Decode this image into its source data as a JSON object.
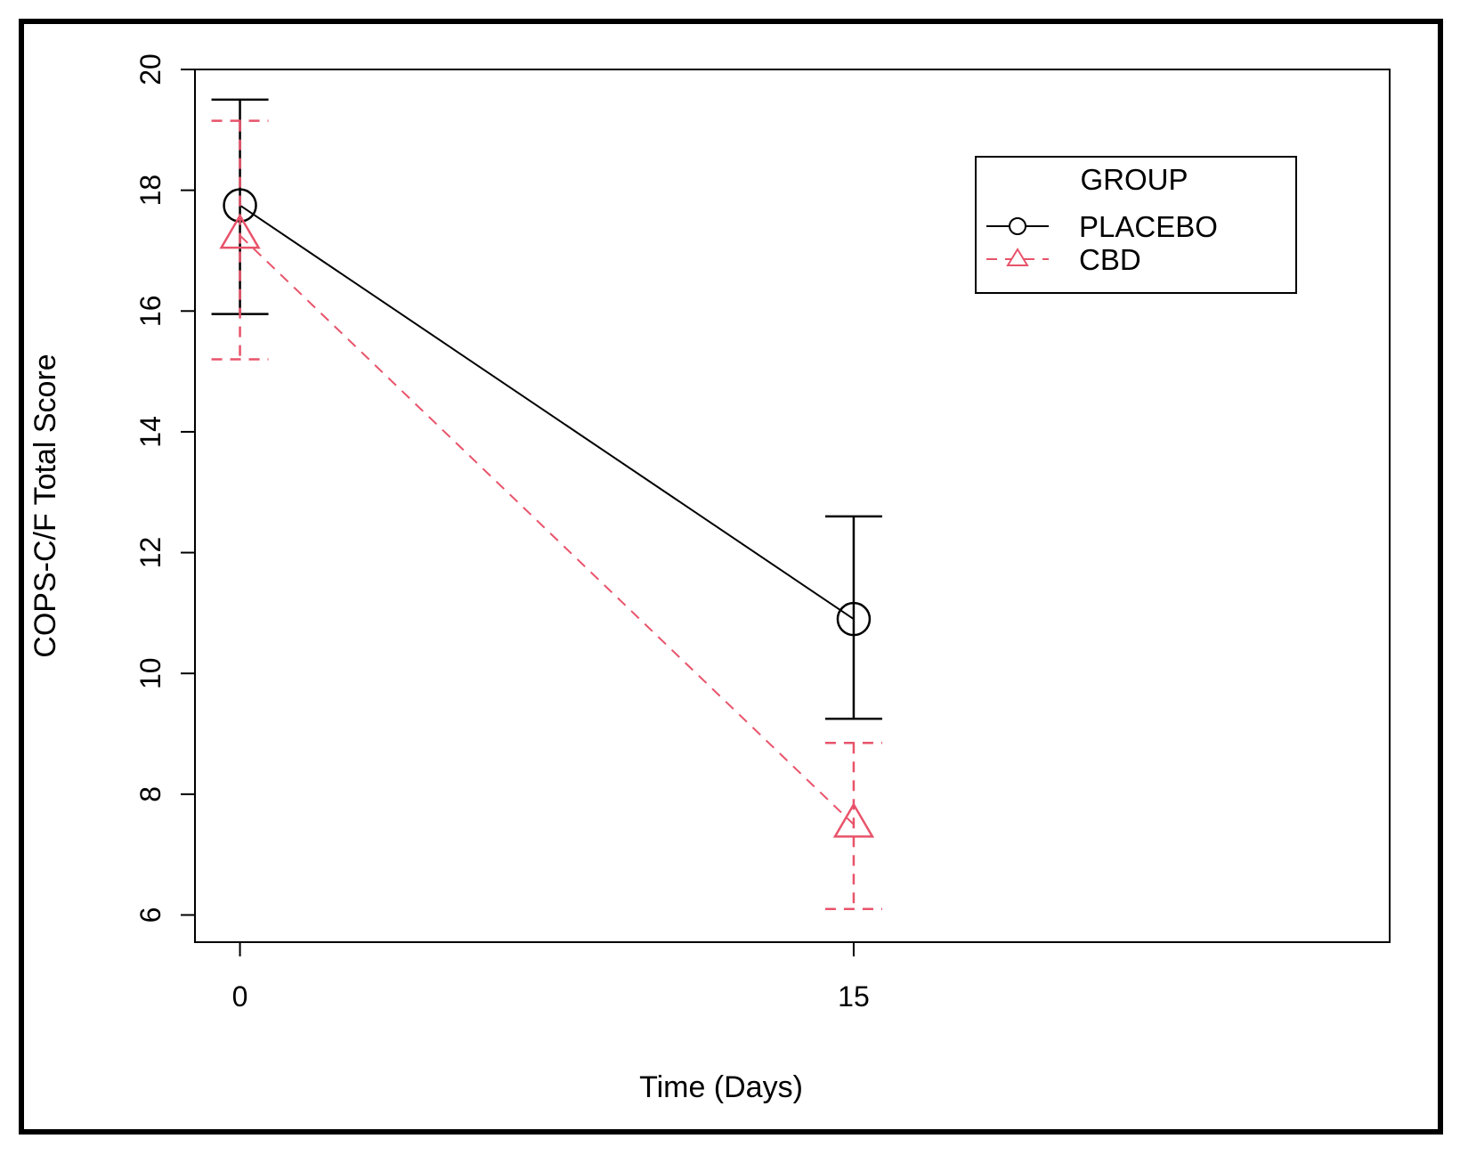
{
  "chart_data": {
    "type": "line",
    "title": "",
    "xlabel": "Time (Days)",
    "ylabel": "COPS-C/F Total Score",
    "x": [
      0,
      15
    ],
    "x_ticks": [
      "0",
      "15"
    ],
    "xlim": [
      -1.1,
      28.1
    ],
    "ylim": [
      5.55,
      20.0
    ],
    "y_ticks": [
      6,
      8,
      10,
      12,
      14,
      16,
      18,
      20
    ],
    "grid": false,
    "legend": {
      "title": "GROUP",
      "position": "top-right"
    },
    "series": [
      {
        "name": "PLACEBO",
        "values": [
          17.75,
          10.9
        ],
        "ci_low": [
          15.95,
          9.25
        ],
        "ci_high": [
          19.5,
          12.6
        ],
        "color": "#000000",
        "line_style": "solid",
        "marker": "circle"
      },
      {
        "name": "CBD",
        "values": [
          17.25,
          7.5
        ],
        "ci_low": [
          15.2,
          6.1
        ],
        "ci_high": [
          19.15,
          8.85
        ],
        "color": "#e8536a",
        "line_style": "dashed",
        "marker": "triangle"
      }
    ]
  }
}
